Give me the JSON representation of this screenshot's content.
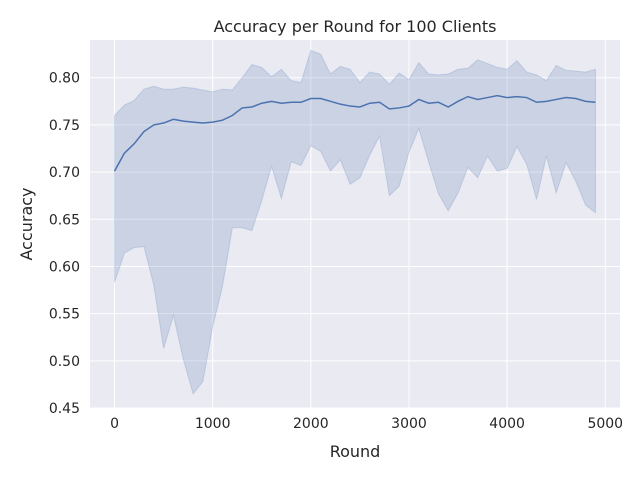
{
  "chart_data": {
    "type": "line",
    "title": "Accuracy per Round for 100 Clients",
    "xlabel": "Round",
    "ylabel": "Accuracy",
    "xlim": [
      -250,
      5150
    ],
    "ylim": [
      0.45,
      0.84
    ],
    "x_ticks": [
      0,
      1000,
      2000,
      3000,
      4000,
      5000
    ],
    "y_ticks": [
      0.45,
      0.5,
      0.55,
      0.6,
      0.65,
      0.7,
      0.75,
      0.8
    ],
    "x_tick_labels": [
      "0",
      "1000",
      "2000",
      "3000",
      "4000",
      "5000"
    ],
    "y_tick_labels": [
      "0.45",
      "0.50",
      "0.55",
      "0.60",
      "0.65",
      "0.70",
      "0.75",
      "0.80"
    ],
    "grid": true,
    "background": "#eaeaf2",
    "line_color": "#4c72b0",
    "band_color": "#4c72b0",
    "x": [
      0,
      100,
      200,
      300,
      400,
      500,
      600,
      700,
      800,
      900,
      1000,
      1100,
      1200,
      1300,
      1400,
      1500,
      1600,
      1700,
      1800,
      1900,
      2000,
      2100,
      2200,
      2300,
      2400,
      2500,
      2600,
      2700,
      2800,
      2900,
      3000,
      3100,
      3200,
      3300,
      3400,
      3500,
      3600,
      3700,
      3800,
      3900,
      4000,
      4100,
      4200,
      4300,
      4400,
      4500,
      4600,
      4700,
      4800,
      4900
    ],
    "series": [
      {
        "mean": [
          0.701,
          0.72,
          0.73,
          0.743,
          0.75,
          0.752,
          0.756,
          0.754,
          0.753,
          0.752,
          0.753,
          0.755,
          0.76,
          0.768,
          0.769,
          0.773,
          0.775,
          0.773,
          0.774,
          0.774,
          0.778,
          0.778,
          0.775,
          0.772,
          0.77,
          0.769,
          0.773,
          0.774,
          0.767,
          0.768,
          0.77,
          0.777,
          0.773,
          0.774,
          0.769,
          0.775,
          0.78,
          0.777,
          0.779,
          0.781,
          0.779,
          0.78,
          0.779,
          0.774,
          0.775,
          0.777,
          0.779,
          0.778,
          0.775,
          0.774
        ],
        "lower": [
          0.583,
          0.614,
          0.62,
          0.621,
          0.58,
          0.513,
          0.548,
          0.502,
          0.465,
          0.478,
          0.536,
          0.579,
          0.641,
          0.641,
          0.638,
          0.67,
          0.706,
          0.672,
          0.711,
          0.707,
          0.728,
          0.722,
          0.701,
          0.713,
          0.687,
          0.694,
          0.718,
          0.738,
          0.675,
          0.685,
          0.721,
          0.746,
          0.711,
          0.677,
          0.659,
          0.678,
          0.705,
          0.694,
          0.717,
          0.701,
          0.704,
          0.727,
          0.708,
          0.671,
          0.717,
          0.678,
          0.71,
          0.69,
          0.665,
          0.657
        ],
        "upper": [
          0.76,
          0.771,
          0.776,
          0.788,
          0.791,
          0.788,
          0.788,
          0.79,
          0.789,
          0.787,
          0.785,
          0.788,
          0.787,
          0.8,
          0.814,
          0.811,
          0.801,
          0.809,
          0.797,
          0.795,
          0.829,
          0.825,
          0.804,
          0.812,
          0.809,
          0.795,
          0.806,
          0.804,
          0.793,
          0.805,
          0.798,
          0.816,
          0.804,
          0.803,
          0.804,
          0.809,
          0.81,
          0.819,
          0.815,
          0.811,
          0.809,
          0.818,
          0.806,
          0.803,
          0.797,
          0.813,
          0.808,
          0.807,
          0.806,
          0.809
        ]
      }
    ]
  }
}
